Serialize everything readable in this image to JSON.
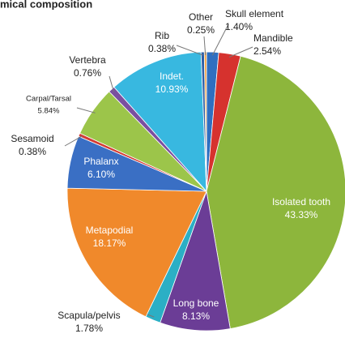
{
  "chart_data": {
    "type": "pie",
    "title": "mical composition",
    "categories": [
      "Skull element",
      "Mandible",
      "Isolated tooth",
      "Long bone",
      "Scapula/pelvis",
      "Metapodial",
      "Phalanx",
      "Sesamoid",
      "Carpal/Tarsal",
      "Vertebra",
      "Indet.",
      "Rib",
      "Other"
    ],
    "values": [
      1.4,
      2.54,
      43.33,
      8.13,
      1.78,
      18.17,
      6.1,
      0.38,
      5.84,
      0.76,
      10.93,
      0.38,
      0.25
    ],
    "value_labels": [
      "1.40%",
      "2.54%",
      "43.33%",
      "8.13%",
      "1.78%",
      "18.17%",
      "6.10%",
      "0.38%",
      "5.84%",
      "0.76%",
      "10.93%",
      "0.38%",
      "0.25%"
    ],
    "colors": [
      "#2f6fc0",
      "#d6322e",
      "#8db63c",
      "#6b3d96",
      "#2bafc5",
      "#f0892b",
      "#3a6fc4",
      "#d33b33",
      "#9cc54a",
      "#7a4fa0",
      "#38b8e0",
      "#2e5fa8",
      "#f2a03b"
    ]
  }
}
